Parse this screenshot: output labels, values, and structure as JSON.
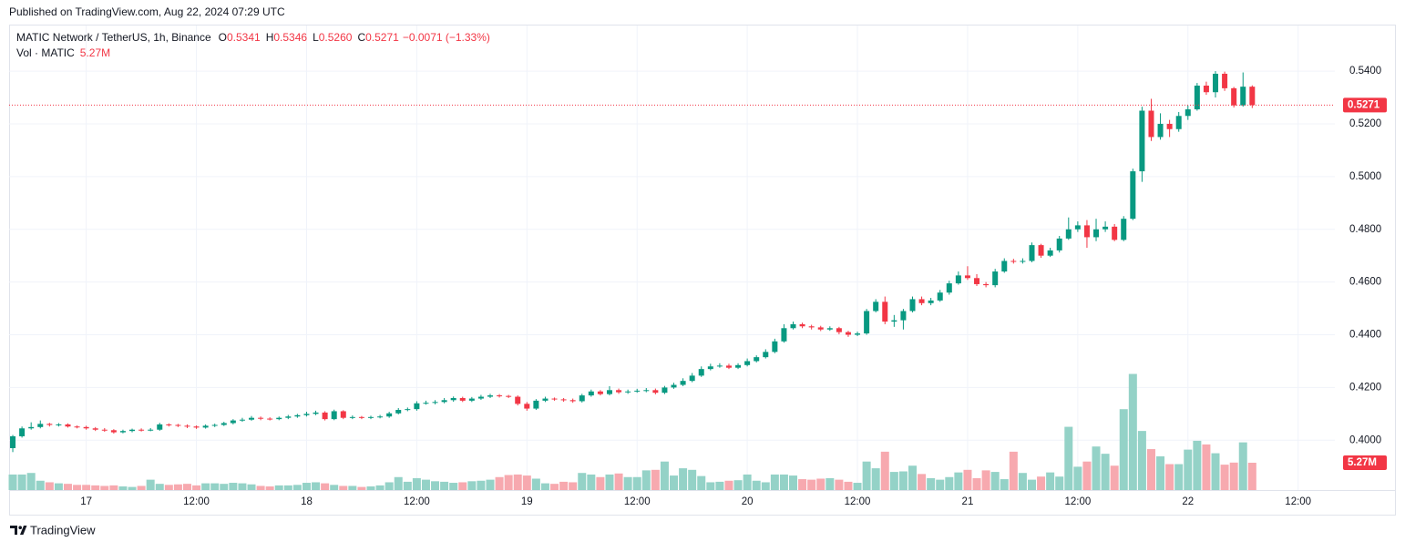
{
  "chart_data": {
    "type": "candlestick",
    "published": "Published on TradingView.com, Aug 22, 2024 07:29 UTC",
    "legend": {
      "symbol": "MATIC Network / TetherUS, 1h, Binance",
      "ohlc": [
        {
          "key": "O",
          "value": "0.5341"
        },
        {
          "key": "H",
          "value": "0.5346"
        },
        {
          "key": "L",
          "value": "0.5260"
        },
        {
          "key": "C",
          "value": "0.5271"
        }
      ],
      "change": "−0.0071 (−1.33%)",
      "volume_key": "Vol · MATIC"
    },
    "footer": "TradingView",
    "last_volume_label": "5.27M",
    "up_color": "#089981",
    "down_color": "#f23645",
    "volume_up_color": "#94d2c7",
    "volume_down_color": "#f7a9af",
    "grid": true,
    "xlim": [
      -0.4,
      144
    ],
    "xticks": [
      {
        "value": 8,
        "label": "17"
      },
      {
        "value": 20,
        "label": "12:00"
      },
      {
        "value": 32,
        "label": "18"
      },
      {
        "value": 44,
        "label": "12:00"
      },
      {
        "value": 56,
        "label": "19"
      },
      {
        "value": 68,
        "label": "12:00"
      },
      {
        "value": 80,
        "label": "20"
      },
      {
        "value": 92,
        "label": "12:00"
      },
      {
        "value": 104,
        "label": "21"
      },
      {
        "value": 116,
        "label": "12:00"
      },
      {
        "value": 128,
        "label": "22"
      },
      {
        "value": 140,
        "label": "12:00"
      }
    ],
    "ylim": [
      0.3811,
      0.5573
    ],
    "yticks": [
      {
        "value": 0.4,
        "label": "0.4000"
      },
      {
        "value": 0.42,
        "label": "0.4200"
      },
      {
        "value": 0.44,
        "label": "0.4400"
      },
      {
        "value": 0.46,
        "label": "0.4600"
      },
      {
        "value": 0.48,
        "label": "0.4800"
      },
      {
        "value": 0.5,
        "label": "0.5000"
      },
      {
        "value": 0.52,
        "label": "0.5200"
      },
      {
        "value": 0.54,
        "label": "0.5400"
      }
    ],
    "volume_lim": [
      0,
      89.6
    ],
    "open": [
      0.397,
      0.4015,
      0.4045,
      0.405,
      0.4062,
      0.4058,
      0.406,
      0.4052,
      0.405,
      0.4045,
      0.404,
      0.4038,
      0.403,
      0.4035,
      0.404,
      0.4038,
      0.404,
      0.406,
      0.4058,
      0.4055,
      0.4052,
      0.4048,
      0.4055,
      0.4058,
      0.4065,
      0.4075,
      0.4078,
      0.4085,
      0.4082,
      0.408,
      0.4085,
      0.409,
      0.4095,
      0.41,
      0.4105,
      0.408,
      0.411,
      0.4085,
      0.4088,
      0.4085,
      0.4088,
      0.409,
      0.4102,
      0.4115,
      0.4118,
      0.414,
      0.4142,
      0.4145,
      0.4152,
      0.416,
      0.415,
      0.4158,
      0.4165,
      0.417,
      0.4168,
      0.4165,
      0.4138,
      0.412,
      0.415,
      0.4158,
      0.4155,
      0.4152,
      0.4148,
      0.417,
      0.4185,
      0.4175,
      0.419,
      0.4182,
      0.4185,
      0.4188,
      0.419,
      0.418,
      0.42,
      0.421,
      0.4225,
      0.4245,
      0.427,
      0.428,
      0.4283,
      0.4275,
      0.4285,
      0.43,
      0.4315,
      0.4335,
      0.4375,
      0.4425,
      0.444,
      0.4432,
      0.4428,
      0.442,
      0.4425,
      0.441,
      0.44,
      0.4405,
      0.449,
      0.4525,
      0.445,
      0.4455,
      0.449,
      0.4535,
      0.452,
      0.453,
      0.456,
      0.4595,
      0.4625,
      0.4615,
      0.4592,
      0.4588,
      0.464,
      0.468,
      0.4678,
      0.468,
      0.474,
      0.47,
      0.472,
      0.4765,
      0.48,
      0.4815,
      0.477,
      0.48,
      0.481,
      0.476,
      0.484,
      0.502,
      0.525,
      0.515,
      0.52,
      0.518,
      0.523,
      0.5255,
      0.5345,
      0.532,
      0.539,
      0.5335,
      0.527,
      0.5341
    ],
    "high": [
      0.402,
      0.4052,
      0.4068,
      0.4075,
      0.4066,
      0.4065,
      0.4064,
      0.4056,
      0.4055,
      0.405,
      0.4046,
      0.4042,
      0.404,
      0.4044,
      0.4045,
      0.4046,
      0.4066,
      0.4064,
      0.4062,
      0.406,
      0.4056,
      0.406,
      0.4063,
      0.407,
      0.408,
      0.4085,
      0.4092,
      0.409,
      0.4087,
      0.409,
      0.4096,
      0.41,
      0.4108,
      0.4112,
      0.411,
      0.4116,
      0.4114,
      0.4094,
      0.4092,
      0.4093,
      0.4096,
      0.4108,
      0.4122,
      0.4124,
      0.4148,
      0.415,
      0.4152,
      0.416,
      0.4166,
      0.4165,
      0.4164,
      0.4172,
      0.4176,
      0.4175,
      0.4172,
      0.417,
      0.4145,
      0.4156,
      0.4165,
      0.4162,
      0.416,
      0.4158,
      0.4176,
      0.4192,
      0.419,
      0.4205,
      0.4196,
      0.4192,
      0.4195,
      0.4198,
      0.4196,
      0.4206,
      0.4218,
      0.4235,
      0.4255,
      0.428,
      0.429,
      0.4292,
      0.429,
      0.4292,
      0.431,
      0.4322,
      0.4345,
      0.4385,
      0.444,
      0.445,
      0.4446,
      0.4438,
      0.4434,
      0.4432,
      0.443,
      0.4415,
      0.4412,
      0.4498,
      0.4535,
      0.4545,
      0.4475,
      0.4498,
      0.4545,
      0.4545,
      0.454,
      0.457,
      0.4605,
      0.464,
      0.466,
      0.463,
      0.46,
      0.465,
      0.469,
      0.4688,
      0.469,
      0.475,
      0.4745,
      0.473,
      0.4775,
      0.4845,
      0.483,
      0.4835,
      0.484,
      0.483,
      0.482,
      0.485,
      0.503,
      0.5265,
      0.5295,
      0.524,
      0.5215,
      0.5245,
      0.527,
      0.5355,
      0.536,
      0.54,
      0.5398,
      0.534,
      0.5395,
      0.5346
    ],
    "low": [
      0.3955,
      0.401,
      0.404,
      0.4045,
      0.4052,
      0.4052,
      0.4048,
      0.4045,
      0.404,
      0.4035,
      0.4032,
      0.4025,
      0.4026,
      0.403,
      0.4033,
      0.4034,
      0.4036,
      0.4052,
      0.405,
      0.4046,
      0.4043,
      0.4044,
      0.405,
      0.4054,
      0.406,
      0.407,
      0.4074,
      0.4076,
      0.4075,
      0.4076,
      0.408,
      0.4085,
      0.409,
      0.4095,
      0.4075,
      0.4076,
      0.408,
      0.408,
      0.408,
      0.408,
      0.4083,
      0.4085,
      0.4098,
      0.411,
      0.4112,
      0.4135,
      0.4136,
      0.414,
      0.4146,
      0.4145,
      0.4145,
      0.4153,
      0.416,
      0.4162,
      0.416,
      0.4132,
      0.4112,
      0.4115,
      0.4145,
      0.415,
      0.4146,
      0.4142,
      0.4143,
      0.4165,
      0.417,
      0.417,
      0.4176,
      0.4176,
      0.418,
      0.4182,
      0.4174,
      0.4175,
      0.4195,
      0.4205,
      0.422,
      0.424,
      0.4265,
      0.4275,
      0.427,
      0.427,
      0.428,
      0.4295,
      0.431,
      0.433,
      0.437,
      0.442,
      0.4425,
      0.442,
      0.4414,
      0.4415,
      0.4402,
      0.4392,
      0.4395,
      0.44,
      0.4485,
      0.444,
      0.443,
      0.442,
      0.4485,
      0.4512,
      0.4512,
      0.4525,
      0.4552,
      0.459,
      0.4608,
      0.4585,
      0.458,
      0.458,
      0.4635,
      0.467,
      0.467,
      0.4675,
      0.4692,
      0.4695,
      0.4712,
      0.476,
      0.479,
      0.473,
      0.4755,
      0.479,
      0.4755,
      0.4755,
      0.4835,
      0.498,
      0.5135,
      0.514,
      0.515,
      0.517,
      0.5215,
      0.525,
      0.531,
      0.53,
      0.5325,
      0.5262,
      0.5265,
      0.526
    ],
    "close": [
      0.4015,
      0.4045,
      0.405,
      0.4062,
      0.4058,
      0.406,
      0.4052,
      0.405,
      0.4045,
      0.404,
      0.4038,
      0.403,
      0.4035,
      0.404,
      0.4038,
      0.404,
      0.406,
      0.4058,
      0.4055,
      0.4052,
      0.4048,
      0.4055,
      0.4058,
      0.4065,
      0.4075,
      0.4078,
      0.4085,
      0.4082,
      0.408,
      0.4085,
      0.409,
      0.4095,
      0.41,
      0.4105,
      0.408,
      0.411,
      0.4085,
      0.4088,
      0.4085,
      0.4088,
      0.409,
      0.4102,
      0.4115,
      0.4118,
      0.414,
      0.4142,
      0.4145,
      0.4152,
      0.416,
      0.415,
      0.4158,
      0.4165,
      0.417,
      0.4168,
      0.4165,
      0.4138,
      0.412,
      0.415,
      0.4158,
      0.4155,
      0.4152,
      0.4148,
      0.417,
      0.4185,
      0.4175,
      0.419,
      0.4182,
      0.4185,
      0.4188,
      0.419,
      0.418,
      0.42,
      0.421,
      0.4225,
      0.4245,
      0.427,
      0.428,
      0.4283,
      0.4275,
      0.4285,
      0.43,
      0.4315,
      0.4335,
      0.4375,
      0.4425,
      0.444,
      0.4432,
      0.4428,
      0.442,
      0.4425,
      0.441,
      0.44,
      0.4405,
      0.449,
      0.4525,
      0.445,
      0.4455,
      0.449,
      0.4535,
      0.452,
      0.453,
      0.456,
      0.4595,
      0.4625,
      0.4615,
      0.4592,
      0.4588,
      0.464,
      0.468,
      0.4678,
      0.468,
      0.474,
      0.47,
      0.472,
      0.4765,
      0.48,
      0.4815,
      0.477,
      0.48,
      0.481,
      0.476,
      0.484,
      0.502,
      0.525,
      0.515,
      0.52,
      0.518,
      0.523,
      0.5255,
      0.5345,
      0.532,
      0.539,
      0.5335,
      0.527,
      0.5341,
      0.5271
    ],
    "volume": [
      3.0,
      3.0,
      3.3,
      1.8,
      1.5,
      1.3,
      1.2,
      1.0,
      1.0,
      0.9,
      0.8,
      0.9,
      0.7,
      0.6,
      0.8,
      2.0,
      1.2,
      1.0,
      1.1,
      1.2,
      0.9,
      1.3,
      1.3,
      1.2,
      1.4,
      1.3,
      1.1,
      0.8,
      0.7,
      0.9,
      0.9,
      1.0,
      1.4,
      1.5,
      1.3,
      1.0,
      0.8,
      0.8,
      0.6,
      0.7,
      0.9,
      1.5,
      2.5,
      1.6,
      2.3,
      2.0,
      1.7,
      1.6,
      1.4,
      1.5,
      1.7,
      1.8,
      2.0,
      2.5,
      2.9,
      3.0,
      2.8,
      2.2,
      1.3,
      1.2,
      1.6,
      1.5,
      3.3,
      3.0,
      2.5,
      3.0,
      3.2,
      2.5,
      2.5,
      3.8,
      3.9,
      5.5,
      2.8,
      4.2,
      3.9,
      2.7,
      1.5,
      1.6,
      1.8,
      1.9,
      3.0,
      1.8,
      1.5,
      3.0,
      3.0,
      2.8,
      2.1,
      2.0,
      2.2,
      2.3,
      2.0,
      1.6,
      1.4,
      5.5,
      4.2,
      7.4,
      3.5,
      3.6,
      4.7,
      3.1,
      2.3,
      2.0,
      2.5,
      3.4,
      3.9,
      2.3,
      3.8,
      3.5,
      2.1,
      7.4,
      3.3,
      2.0,
      2.6,
      3.4,
      2.6,
      12.2,
      4.5,
      5.5,
      8.4,
      7.0,
      4.7,
      15.6,
      22.4,
      11.4,
      7.9,
      6.5,
      5.0,
      5.0,
      7.8,
      9.5,
      8.8,
      7.1,
      4.9,
      5.3,
      9.2,
      5.27
    ]
  }
}
